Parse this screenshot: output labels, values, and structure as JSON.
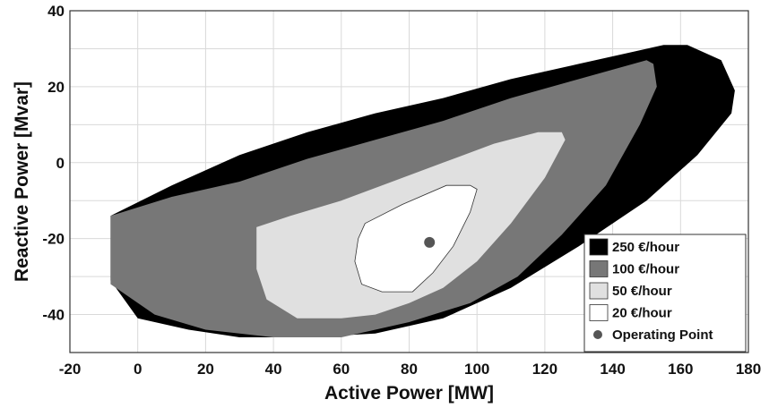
{
  "chart_data": {
    "type": "area",
    "xlabel": "Active Power [MW]",
    "ylabel": "Reactive Power [Mvar]",
    "xlim": [
      -20,
      180
    ],
    "ylim": [
      -50,
      40
    ],
    "xticks": [
      -20,
      0,
      20,
      40,
      60,
      80,
      100,
      120,
      140,
      160,
      180
    ],
    "yticks": [
      -40,
      -20,
      0,
      20,
      40
    ],
    "grid": true,
    "legend_position": "bottom-right",
    "series": [
      {
        "name": "250 €/hour",
        "color": "#000000",
        "polygon": [
          [
            -8,
            -14
          ],
          [
            10,
            -6
          ],
          [
            30,
            2
          ],
          [
            50,
            8
          ],
          [
            70,
            13
          ],
          [
            90,
            17
          ],
          [
            110,
            22
          ],
          [
            130,
            26
          ],
          [
            145,
            29
          ],
          [
            155,
            31
          ],
          [
            162,
            31
          ],
          [
            172,
            27
          ],
          [
            176,
            19
          ],
          [
            175,
            13
          ],
          [
            165,
            2
          ],
          [
            150,
            -10
          ],
          [
            130,
            -22
          ],
          [
            110,
            -33
          ],
          [
            90,
            -41
          ],
          [
            70,
            -45
          ],
          [
            50,
            -46
          ],
          [
            30,
            -46
          ],
          [
            15,
            -44
          ],
          [
            0,
            -41
          ],
          [
            -8,
            -31
          ]
        ]
      },
      {
        "name": "100 €/hour",
        "color": "#777777",
        "polygon": [
          [
            -8,
            -14
          ],
          [
            10,
            -9
          ],
          [
            30,
            -5
          ],
          [
            50,
            1
          ],
          [
            70,
            6
          ],
          [
            90,
            11
          ],
          [
            110,
            17
          ],
          [
            130,
            22
          ],
          [
            150,
            27
          ],
          [
            152,
            26
          ],
          [
            153,
            20
          ],
          [
            148,
            10
          ],
          [
            138,
            -6
          ],
          [
            125,
            -19
          ],
          [
            112,
            -30
          ],
          [
            98,
            -37
          ],
          [
            80,
            -42
          ],
          [
            60,
            -46
          ],
          [
            40,
            -46
          ],
          [
            20,
            -44
          ],
          [
            5,
            -40
          ],
          [
            -8,
            -32
          ]
        ]
      },
      {
        "name": "50 €/hour",
        "color": "#e0e0e0",
        "polygon": [
          [
            35,
            -17
          ],
          [
            45,
            -14
          ],
          [
            60,
            -10
          ],
          [
            75,
            -5
          ],
          [
            90,
            0
          ],
          [
            105,
            5
          ],
          [
            118,
            8
          ],
          [
            125,
            8
          ],
          [
            126,
            6
          ],
          [
            120,
            -4
          ],
          [
            110,
            -16
          ],
          [
            100,
            -26
          ],
          [
            90,
            -33
          ],
          [
            80,
            -37
          ],
          [
            70,
            -40
          ],
          [
            60,
            -41
          ],
          [
            47,
            -41
          ],
          [
            38,
            -36
          ],
          [
            35,
            -28
          ]
        ]
      },
      {
        "name": "20 €/hour",
        "color": "#ffffff",
        "polygon": [
          [
            67,
            -16
          ],
          [
            78,
            -11
          ],
          [
            91,
            -6
          ],
          [
            98,
            -6
          ],
          [
            100,
            -7
          ],
          [
            98,
            -13
          ],
          [
            93,
            -22
          ],
          [
            87,
            -29
          ],
          [
            81,
            -34
          ],
          [
            72,
            -34
          ],
          [
            66,
            -32
          ],
          [
            64,
            -26
          ],
          [
            65,
            -20
          ]
        ]
      }
    ],
    "operating_point": {
      "name": "Operating Point",
      "x": 86,
      "y": -21,
      "color": "#555555"
    },
    "legend": [
      {
        "label": "250 €/hour",
        "color": "#000000"
      },
      {
        "label": "100 €/hour",
        "color": "#777777"
      },
      {
        "label": "50 €/hour",
        "color": "#e0e0e0"
      },
      {
        "label": "20 €/hour",
        "color": "#ffffff"
      },
      {
        "label": "Operating Point",
        "color": "#555555",
        "marker": "circle"
      }
    ]
  }
}
